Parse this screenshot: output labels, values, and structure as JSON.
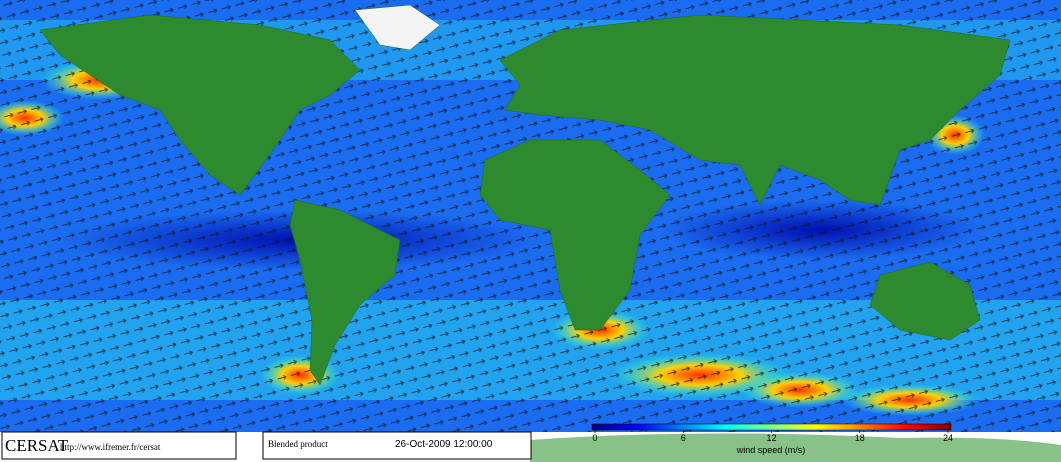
{
  "map": {
    "credits": {
      "org": "CERSAT",
      "url": "http://www.ifremer.fr/cersat"
    },
    "product": {
      "name": "Blended product",
      "date": "26-Oct-2009 12:00:00"
    },
    "colorbar": {
      "label": "wind speed (m/s)",
      "lim": [
        0,
        24
      ],
      "ticks": [
        0,
        6,
        12,
        18,
        24
      ],
      "colors": [
        "#00007f",
        "#0000ff",
        "#0080ff",
        "#00ffff",
        "#80ff80",
        "#ffff00",
        "#ff8000",
        "#ff0000",
        "#7f0000"
      ]
    }
  }
}
